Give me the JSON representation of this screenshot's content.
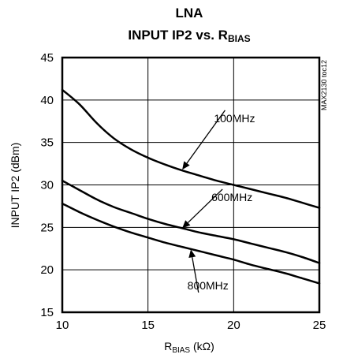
{
  "chart_data": {
    "type": "line",
    "title_line1": "LNA",
    "title_line2_main": "INPUT IP2 vs. R",
    "title_line2_sub": "BIAS",
    "xlabel_main": "R",
    "xlabel_sub": "BIAS",
    "xlabel_unit": " (kΩ)",
    "ylabel": "INPUT IP2 (dBm)",
    "part_code": "MAX2130 toc12",
    "xlim": [
      10,
      25
    ],
    "ylim": [
      15,
      45
    ],
    "x_ticks": [
      10,
      15,
      20,
      25
    ],
    "y_ticks": [
      15,
      20,
      25,
      30,
      35,
      40,
      45
    ],
    "grid": true,
    "series": [
      {
        "name": "100MHz",
        "x": [
          10,
          11,
          12,
          13,
          14,
          15,
          16,
          17,
          18,
          19,
          20,
          21,
          22,
          23,
          24,
          25
        ],
        "y": [
          41.2,
          39.5,
          37.3,
          35.5,
          34.2,
          33.2,
          32.4,
          31.7,
          31.1,
          30.5,
          30.0,
          29.5,
          29.0,
          28.5,
          27.9,
          27.3
        ]
      },
      {
        "name": "600MHz",
        "x": [
          10,
          11,
          12,
          13,
          14,
          15,
          16,
          17,
          18,
          19,
          20,
          21,
          22,
          23,
          24,
          25
        ],
        "y": [
          30.5,
          29.4,
          28.3,
          27.4,
          26.7,
          26.0,
          25.4,
          24.9,
          24.4,
          24.0,
          23.6,
          23.1,
          22.6,
          22.1,
          21.5,
          20.8
        ]
      },
      {
        "name": "800MHz",
        "x": [
          10,
          11,
          12,
          13,
          14,
          15,
          16,
          17,
          18,
          19,
          20,
          21,
          22,
          23,
          24,
          25
        ],
        "y": [
          27.8,
          26.8,
          25.9,
          25.1,
          24.4,
          23.8,
          23.2,
          22.7,
          22.2,
          21.7,
          21.2,
          20.6,
          20.1,
          19.6,
          19.0,
          18.4
        ]
      }
    ],
    "annotations": [
      {
        "text": "100MHz",
        "series": "100MHz",
        "text_x": 20.05,
        "text_y": 37.4,
        "tip_x": 17.0,
        "tip_y": 31.8
      },
      {
        "text": "600MHz",
        "series": "600MHz",
        "text_x": 19.9,
        "text_y": 28.1,
        "tip_x": 17.0,
        "tip_y": 24.9
      },
      {
        "text": "800MHz",
        "series": "800MHz",
        "text_x": 18.5,
        "text_y": 17.7,
        "tip_x": 17.5,
        "tip_y": 22.4
      }
    ]
  }
}
